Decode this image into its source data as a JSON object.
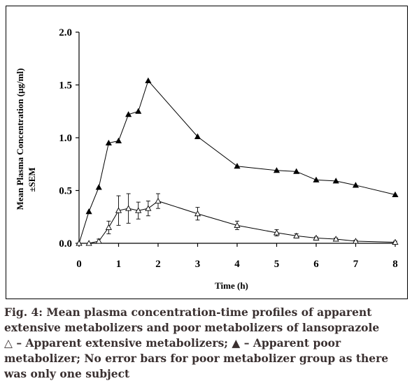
{
  "chart_data": {
    "type": "line",
    "xlabel": "Time (h)",
    "ylabel_line1": "Mean Plasma Concentration (µg/ml)",
    "ylabel_line2": "±SEM",
    "xlim": [
      0,
      8
    ],
    "ylim": [
      0,
      2.0
    ],
    "x_ticks": [
      "0",
      "1",
      "2",
      "3",
      "4",
      "5",
      "6",
      "7",
      "8"
    ],
    "y_ticks": [
      "0.0",
      "0.5",
      "1.0",
      "1.5",
      "2.0"
    ],
    "grid": false,
    "legend": "none",
    "series": [
      {
        "marker": "filled-triangle",
        "x": [
          0,
          0.25,
          0.5,
          0.75,
          1,
          1.25,
          1.5,
          1.75,
          3,
          4,
          5,
          5.5,
          6,
          6.5,
          7,
          8
        ],
        "y": [
          0.0,
          0.3,
          0.53,
          0.95,
          0.97,
          1.22,
          1.25,
          1.54,
          1.01,
          0.73,
          0.69,
          0.68,
          0.6,
          0.59,
          0.55,
          0.46
        ]
      },
      {
        "marker": "open-triangle",
        "x": [
          0,
          0.25,
          0.5,
          0.75,
          1,
          1.25,
          1.5,
          1.75,
          2,
          3,
          4,
          5,
          5.5,
          6,
          6.5,
          7,
          8
        ],
        "y": [
          0.0,
          0.0,
          0.02,
          0.15,
          0.31,
          0.33,
          0.31,
          0.33,
          0.4,
          0.28,
          0.17,
          0.1,
          0.07,
          0.05,
          0.04,
          0.02,
          0.01
        ],
        "err": [
          0,
          0,
          0.02,
          0.06,
          0.14,
          0.14,
          0.08,
          0.07,
          0.07,
          0.06,
          0.04,
          0.03,
          0.02,
          0.01,
          0.01,
          0.01,
          0.01
        ]
      }
    ]
  },
  "caption": {
    "lines": [
      "Fig. 4: Mean plasma concentration-time profiles of apparent",
      "extensive metabolizers and poor metabolizers of lansoprazole",
      "△ – Apparent extensive metabolizers; ▲ – Apparent poor",
      "metabolizer; No error bars for poor metabolizer group as there",
      "was only one subject"
    ]
  }
}
